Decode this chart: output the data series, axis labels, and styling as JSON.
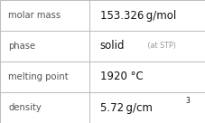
{
  "rows": [
    {
      "label": "molar mass",
      "value": "153.326 g/mol",
      "type": "normal"
    },
    {
      "label": "phase",
      "value": "solid",
      "type": "phase",
      "extra": " (at STP)"
    },
    {
      "label": "melting point",
      "value": "1920 °C",
      "type": "normal"
    },
    {
      "label": "density",
      "value": "5.72 g/cm",
      "type": "super",
      "sup": "3"
    }
  ],
  "bg_color": "#ffffff",
  "border_color": "#bbbbbb",
  "label_color": "#555555",
  "value_color": "#111111",
  "extra_color": "#999999",
  "label_fontsize": 7.2,
  "value_fontsize": 8.5,
  "extra_fontsize": 5.8,
  "sup_fontsize": 5.5,
  "col_split": 0.435,
  "figw": 2.28,
  "figh": 1.36,
  "dpi": 100
}
